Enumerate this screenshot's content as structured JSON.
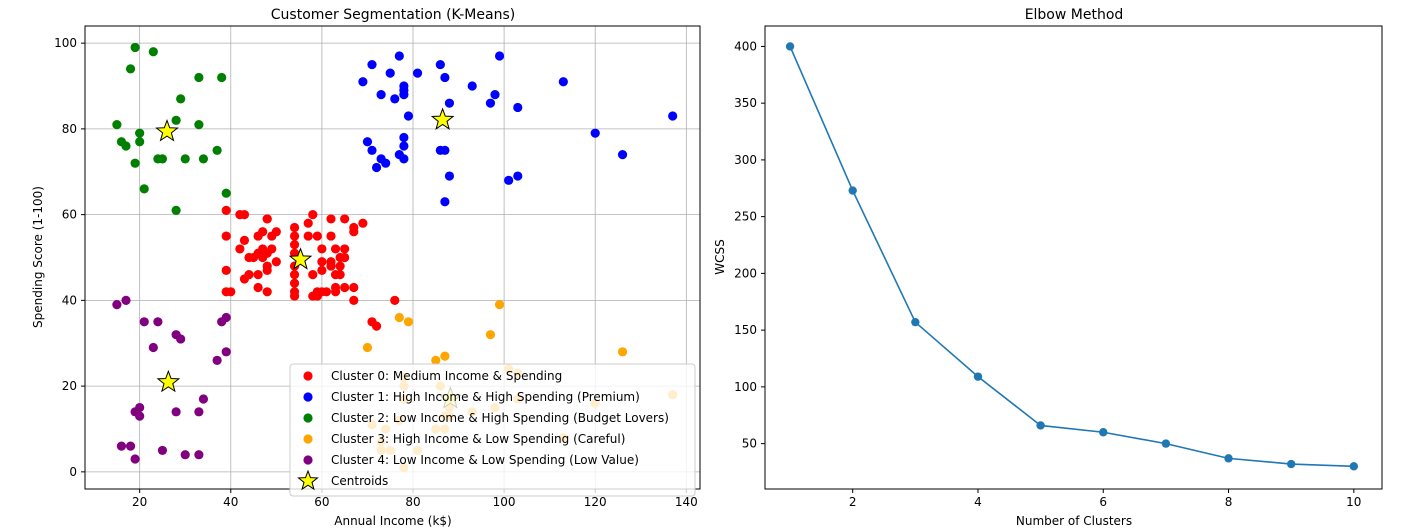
{
  "chart_data": [
    {
      "type": "scatter",
      "title": "Customer Segmentation (K-Means)",
      "xlabel": "Annual Income (k$)",
      "ylabel": "Spending Score (1-100)",
      "xlim": [
        8,
        143
      ],
      "ylim": [
        -4,
        104
      ],
      "xticks": [
        "20",
        "40",
        "60",
        "80",
        "100",
        "120",
        "140"
      ],
      "yticks": [
        "0",
        "20",
        "40",
        "60",
        "80",
        "100"
      ],
      "grid": true,
      "legend_position": "lower right",
      "series": [
        {
          "name": "Cluster 0: Medium Income & Spending",
          "color": "#ff0000",
          "points": [
            [
              39,
              61
            ],
            [
              39,
              55
            ],
            [
              39,
              47
            ],
            [
              39,
              42
            ],
            [
              40,
              42
            ],
            [
              42,
              60
            ],
            [
              42,
              52
            ],
            [
              43,
              60
            ],
            [
              43,
              54
            ],
            [
              43,
              45
            ],
            [
              44,
              50
            ],
            [
              44,
              46
            ],
            [
              45,
              50
            ],
            [
              46,
              55
            ],
            [
              46,
              51
            ],
            [
              46,
              46
            ],
            [
              46,
              43
            ],
            [
              47,
              56
            ],
            [
              47,
              52
            ],
            [
              47,
              50
            ],
            [
              48,
              59
            ],
            [
              48,
              59
            ],
            [
              48,
              51
            ],
            [
              48,
              48
            ],
            [
              48,
              47
            ],
            [
              48,
              42
            ],
            [
              49,
              55
            ],
            [
              49,
              52
            ],
            [
              50,
              56
            ],
            [
              50,
              49
            ],
            [
              54,
              57
            ],
            [
              54,
              55
            ],
            [
              54,
              53
            ],
            [
              54,
              51
            ],
            [
              54,
              48
            ],
            [
              54,
              46
            ],
            [
              54,
              44
            ],
            [
              54,
              42
            ],
            [
              54,
              41
            ],
            [
              57,
              58
            ],
            [
              57,
              55
            ],
            [
              58,
              60
            ],
            [
              58,
              46
            ],
            [
              58,
              41
            ],
            [
              59,
              55
            ],
            [
              59,
              42
            ],
            [
              59,
              41
            ],
            [
              60,
              52
            ],
            [
              60,
              49
            ],
            [
              60,
              47
            ],
            [
              60,
              42
            ],
            [
              61,
              42
            ],
            [
              62,
              59
            ],
            [
              62,
              55
            ],
            [
              62,
              49
            ],
            [
              62,
              48
            ],
            [
              63,
              52
            ],
            [
              63,
              46
            ],
            [
              63,
              43
            ],
            [
              63,
              42
            ],
            [
              64,
              50
            ],
            [
              64,
              48
            ],
            [
              64,
              46
            ],
            [
              65,
              59
            ],
            [
              65,
              52
            ],
            [
              65,
              50
            ],
            [
              65,
              43
            ],
            [
              67,
              57
            ],
            [
              67,
              56
            ],
            [
              67,
              43
            ],
            [
              67,
              40
            ],
            [
              69,
              58
            ],
            [
              71,
              35
            ],
            [
              72,
              34
            ],
            [
              76,
              40
            ]
          ]
        },
        {
          "name": "Cluster 1: High Income & High Spending (Premium)",
          "color": "#0000ff",
          "points": [
            [
              69,
              91
            ],
            [
              70,
              77
            ],
            [
              71,
              95
            ],
            [
              71,
              75
            ],
            [
              72,
              71
            ],
            [
              73,
              88
            ],
            [
              73,
              73
            ],
            [
              74,
              72
            ],
            [
              75,
              93
            ],
            [
              76,
              87
            ],
            [
              77,
              97
            ],
            [
              77,
              74
            ],
            [
              78,
              90
            ],
            [
              78,
              89
            ],
            [
              78,
              88
            ],
            [
              78,
              78
            ],
            [
              78,
              76
            ],
            [
              78,
              73
            ],
            [
              79,
              83
            ],
            [
              81,
              93
            ],
            [
              86,
              95
            ],
            [
              86,
              75
            ],
            [
              87,
              92
            ],
            [
              87,
              75
            ],
            [
              87,
              63
            ],
            [
              88,
              86
            ],
            [
              88,
              69
            ],
            [
              93,
              90
            ],
            [
              97,
              86
            ],
            [
              98,
              88
            ],
            [
              99,
              97
            ],
            [
              101,
              68
            ],
            [
              103,
              85
            ],
            [
              103,
              69
            ],
            [
              113,
              91
            ],
            [
              120,
              79
            ],
            [
              126,
              74
            ],
            [
              137,
              83
            ]
          ]
        },
        {
          "name": "Cluster 2: Low Income & High Spending (Budget Lovers)",
          "color": "#008000",
          "points": [
            [
              15,
              81
            ],
            [
              16,
              77
            ],
            [
              17,
              76
            ],
            [
              18,
              94
            ],
            [
              19,
              99
            ],
            [
              19,
              72
            ],
            [
              20,
              79
            ],
            [
              20,
              77
            ],
            [
              21,
              66
            ],
            [
              23,
              98
            ],
            [
              24,
              73
            ],
            [
              25,
              73
            ],
            [
              28,
              82
            ],
            [
              28,
              61
            ],
            [
              29,
              87
            ],
            [
              30,
              73
            ],
            [
              33,
              92
            ],
            [
              33,
              81
            ],
            [
              34,
              73
            ],
            [
              37,
              75
            ],
            [
              38,
              92
            ],
            [
              39,
              65
            ]
          ]
        },
        {
          "name": "Cluster 3: High Income & Low Spending (Careful)",
          "color": "#ffa500",
          "points": [
            [
              70,
              29
            ],
            [
              71,
              11
            ],
            [
              73,
              5
            ],
            [
              73,
              7
            ],
            [
              74,
              10
            ],
            [
              75,
              5
            ],
            [
              77,
              36
            ],
            [
              77,
              12
            ],
            [
              78,
              22
            ],
            [
              78,
              17
            ],
            [
              78,
              1
            ],
            [
              78,
              20
            ],
            [
              79,
              35
            ],
            [
              81,
              5
            ],
            [
              85,
              26
            ],
            [
              85,
              10
            ],
            [
              86,
              20
            ],
            [
              87,
              27
            ],
            [
              87,
              13
            ],
            [
              87,
              10
            ],
            [
              88,
              15
            ],
            [
              88,
              13
            ],
            [
              93,
              14
            ],
            [
              97,
              32
            ],
            [
              98,
              15
            ],
            [
              99,
              39
            ],
            [
              101,
              24
            ],
            [
              103,
              17
            ],
            [
              103,
              23
            ],
            [
              113,
              8
            ],
            [
              120,
              16
            ],
            [
              126,
              28
            ],
            [
              137,
              18
            ]
          ]
        },
        {
          "name": "Cluster 4: Low Income & Low Spending (Low Value)",
          "color": "#800080",
          "points": [
            [
              15,
              39
            ],
            [
              16,
              6
            ],
            [
              17,
              40
            ],
            [
              18,
              6
            ],
            [
              19,
              3
            ],
            [
              19,
              14
            ],
            [
              20,
              15
            ],
            [
              20,
              13
            ],
            [
              21,
              35
            ],
            [
              23,
              29
            ],
            [
              24,
              35
            ],
            [
              25,
              5
            ],
            [
              28,
              32
            ],
            [
              28,
              14
            ],
            [
              29,
              31
            ],
            [
              30,
              4
            ],
            [
              33,
              14
            ],
            [
              33,
              4
            ],
            [
              34,
              17
            ],
            [
              37,
              26
            ],
            [
              38,
              35
            ],
            [
              39,
              36
            ],
            [
              39,
              28
            ]
          ]
        },
        {
          "name": "Centroids",
          "color": "#ffff00",
          "marker": "star",
          "points": [
            [
              26,
              79.4
            ],
            [
              86.5,
              82.1
            ],
            [
              55.3,
              49.5
            ],
            [
              26.3,
              20.9
            ],
            [
              88.2,
              17.1
            ]
          ]
        }
      ]
    },
    {
      "type": "line",
      "title": "Elbow Method",
      "xlabel": "Number of Clusters",
      "ylabel": "WCSS",
      "xlim": [
        0.6,
        10.45
      ],
      "ylim": [
        10,
        418
      ],
      "xticks": [
        "2",
        "4",
        "6",
        "8",
        "10"
      ],
      "yticks": [
        "50",
        "100",
        "150",
        "200",
        "250",
        "300",
        "350",
        "400"
      ],
      "grid": false,
      "color": "#1f77b4",
      "series": [
        {
          "x": [
            1,
            2,
            3,
            4,
            5,
            6,
            7,
            8,
            9,
            10
          ],
          "values": [
            400,
            273,
            157,
            109,
            66,
            60,
            50,
            37,
            32,
            30
          ]
        }
      ]
    }
  ]
}
